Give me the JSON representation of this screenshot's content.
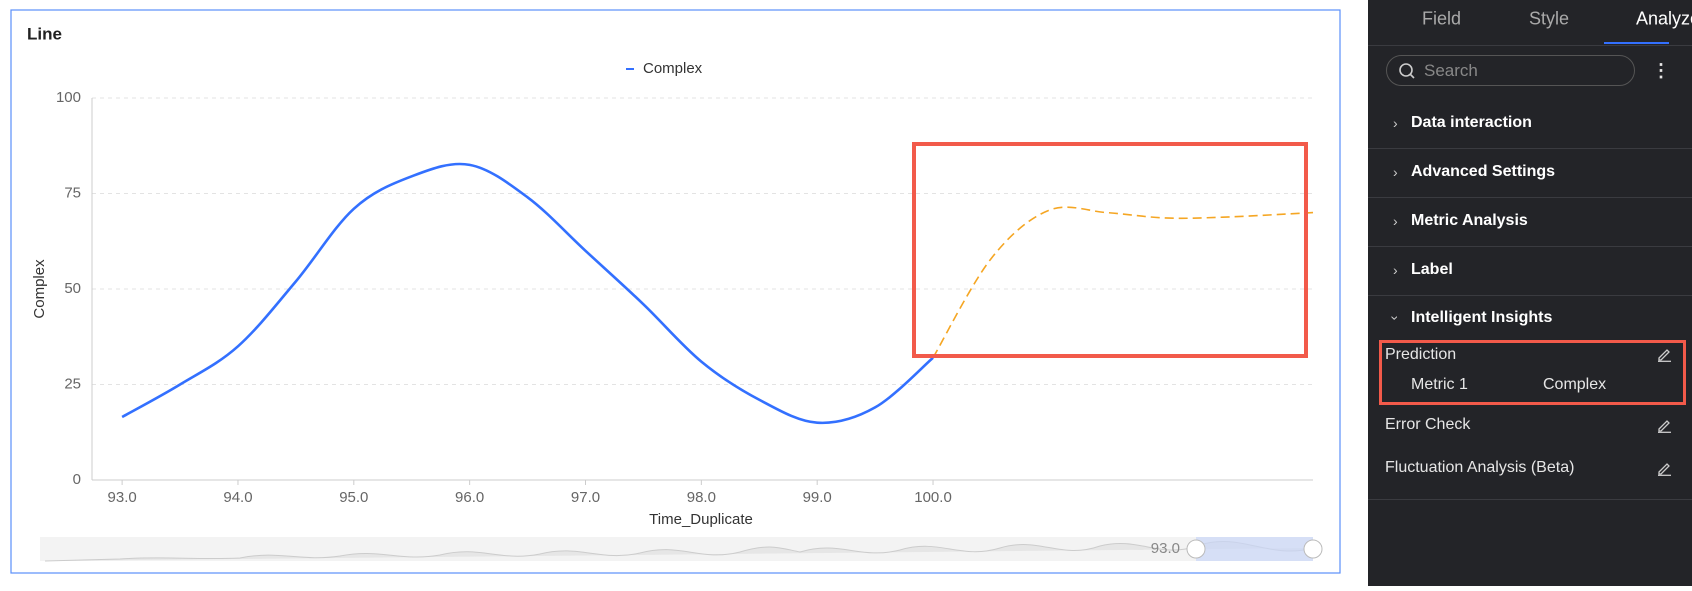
{
  "chart_data": {
    "type": "line",
    "title": "Line",
    "x_label": "Time_Duplicate",
    "y_label": "Complex",
    "x": [
      93,
      93.5,
      94,
      94.5,
      95,
      95.5,
      96,
      96.5,
      97,
      97.5,
      98,
      98.5,
      99,
      99.5,
      100
    ],
    "series": [
      {
        "name": "Complex",
        "color": "#3370ff",
        "values": [
          16.5,
          25,
          35,
          52,
          71,
          79.5,
          82.5,
          74,
          60,
          46,
          31,
          21,
          15,
          19,
          32
        ]
      }
    ],
    "forecast": {
      "color": "#f5a623",
      "dashed": true,
      "x": [
        100,
        100.5,
        101,
        101.5,
        102,
        102.5,
        103.28
      ],
      "values": [
        32,
        57.9,
        70.6,
        70,
        68.6,
        68.8,
        70
      ]
    },
    "xlim": [
      92.74,
      103.28
    ],
    "ylim": [
      0,
      100
    ],
    "xticks": [
      {
        "value": 93,
        "label": "93.0"
      },
      {
        "value": 94,
        "label": "94.0"
      },
      {
        "value": 95,
        "label": "95.0"
      },
      {
        "value": 96,
        "label": "96.0"
      },
      {
        "value": 97,
        "label": "97.0"
      },
      {
        "value": 98,
        "label": "98.0"
      },
      {
        "value": 99,
        "label": "99.0"
      },
      {
        "value": 100,
        "label": "100.0"
      }
    ],
    "yticks": [
      0,
      25,
      50,
      75,
      100
    ],
    "grid": true,
    "legend": "top",
    "slider": {
      "label": "93.0"
    }
  },
  "panel": {
    "tabs": [
      "Field",
      "Style",
      "Analyze"
    ],
    "active_tab": 2,
    "search_placeholder": "Search",
    "sections": [
      "Data interaction",
      "Advanced Settings",
      "Metric Analysis",
      "Label",
      "Intelligent Insights"
    ],
    "insights": {
      "prediction": {
        "title": "Prediction",
        "metric_label": "Metric 1",
        "metric_value": "Complex"
      },
      "items": [
        "Error Check",
        "Fluctuation Analysis (Beta)"
      ]
    }
  }
}
